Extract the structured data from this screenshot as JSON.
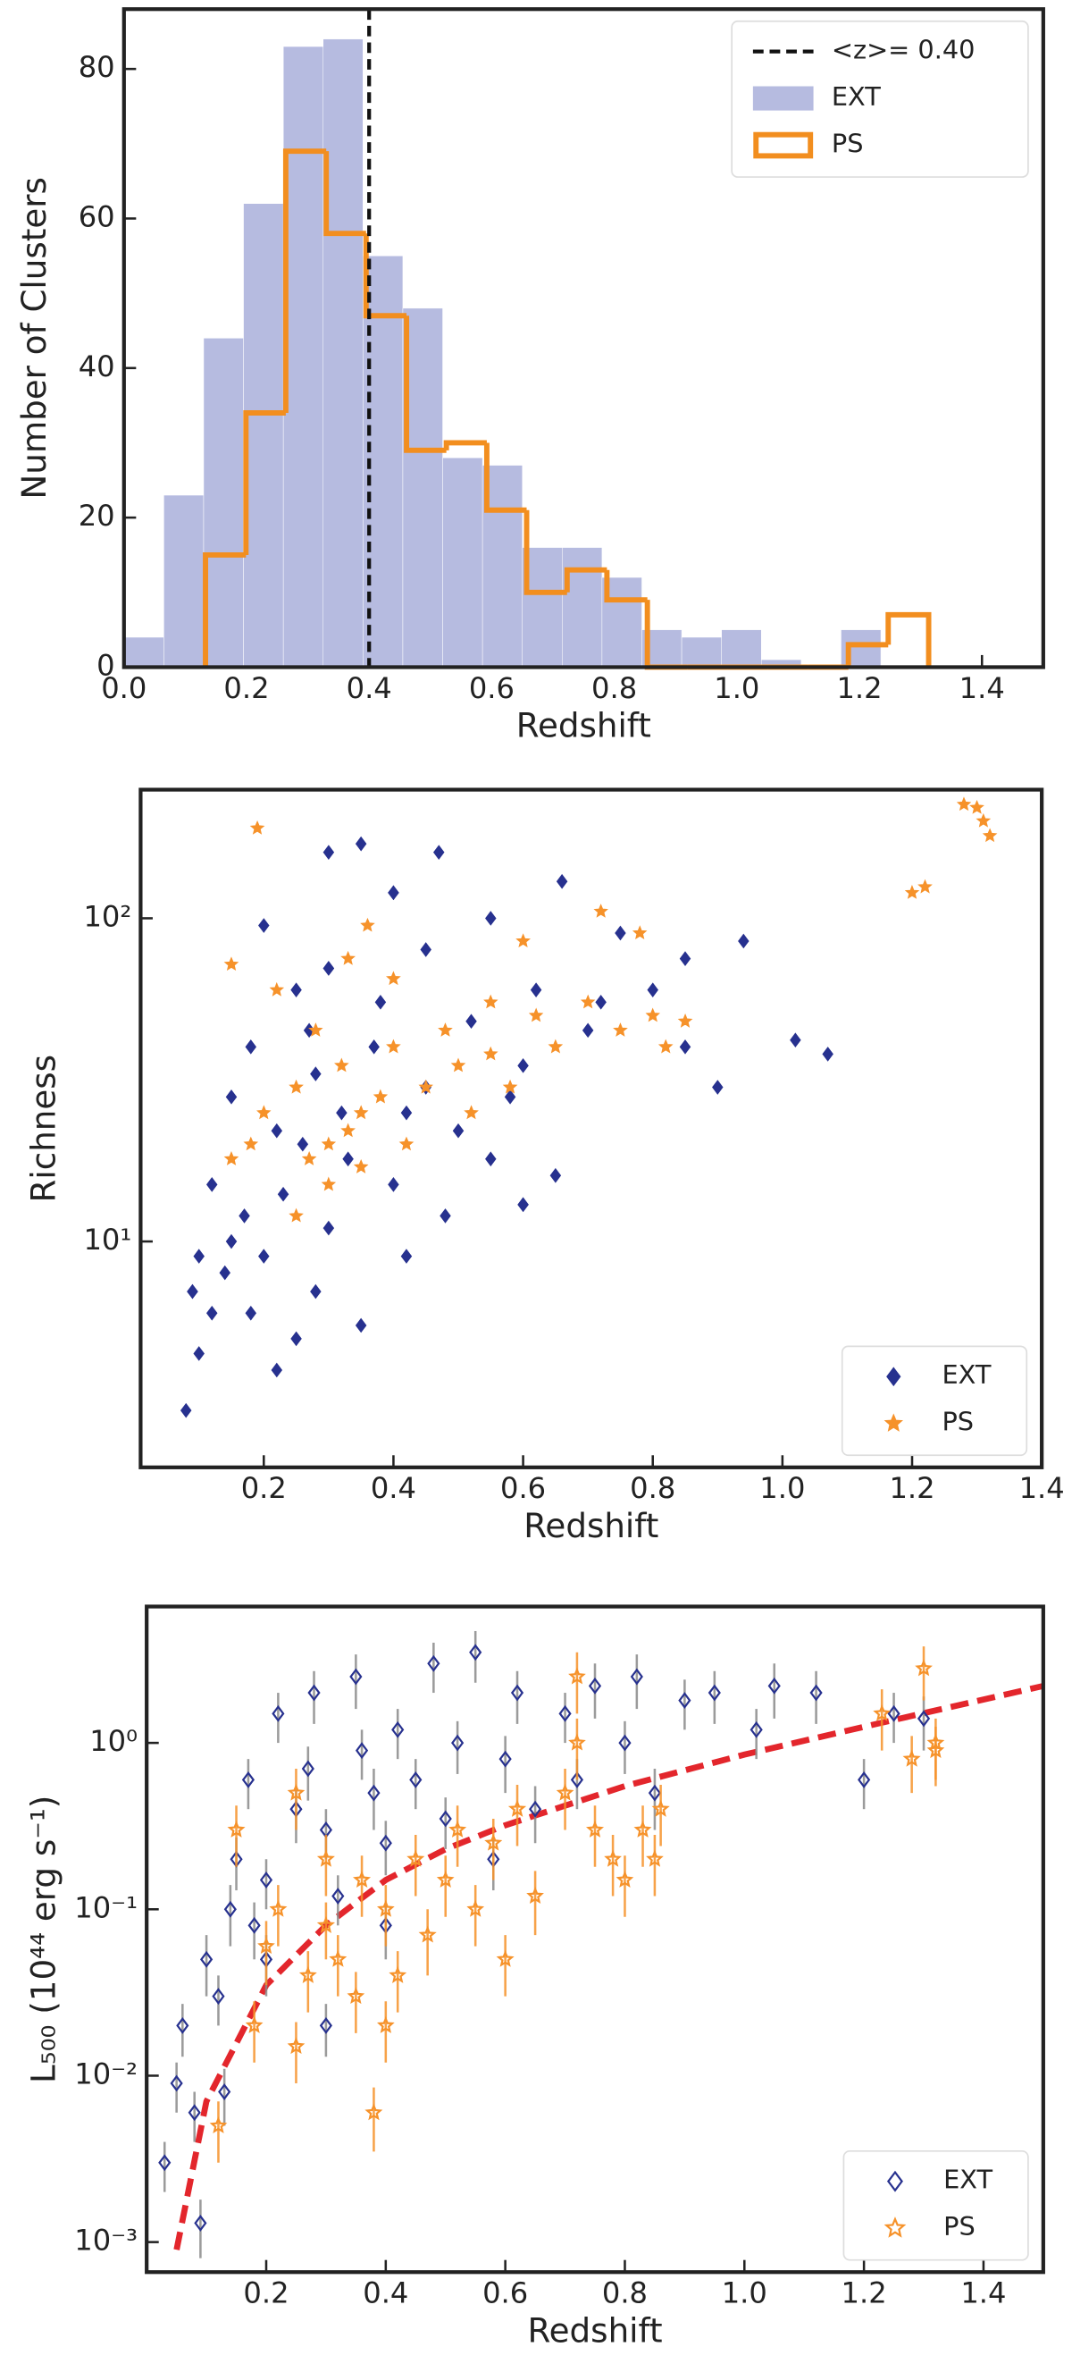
{
  "chart_data": [
    {
      "type": "histogram",
      "xlabel": "Redshift",
      "ylabel": "Number of Clusters",
      "xlim": [
        0,
        1.5
      ],
      "xticks": [
        {
          "value": 0,
          "label": "0.0"
        },
        0.2,
        0.4,
        0.6,
        0.8,
        {
          "value": 1,
          "label": "1.0"
        },
        1.2,
        1.4
      ],
      "ylim": [
        0,
        88
      ],
      "yticks": [
        0,
        20,
        40,
        60,
        80
      ],
      "legend": "upper right",
      "reference_line": {
        "name": "<z>= 0.40",
        "x": 0.4,
        "color": "#111111"
      },
      "series": [
        {
          "name": "EXT",
          "color": "#b6bbe0",
          "style": "filled",
          "bins": [
            0,
            0.065,
            0.13,
            0.195,
            0.26,
            0.325,
            0.39,
            0.455,
            0.52,
            0.585,
            0.65,
            0.715,
            0.78,
            0.845,
            0.91,
            0.975,
            1.04,
            1.105,
            1.17,
            1.235,
            1.3
          ],
          "counts": [
            4,
            23,
            44,
            62,
            83,
            84,
            55,
            48,
            28,
            27,
            16,
            16,
            12,
            5,
            4,
            5,
            1,
            0,
            5,
            0
          ]
        },
        {
          "name": "PS",
          "color": "#f28e1f",
          "style": "step",
          "bins": [
            0.133,
            0.199,
            0.264,
            0.33,
            0.395,
            0.461,
            0.526,
            0.592,
            0.657,
            0.723,
            0.788,
            0.854,
            0.919,
            0.985,
            1.05,
            1.116,
            1.182,
            1.247,
            1.313
          ],
          "counts": [
            15,
            34,
            69,
            58,
            47,
            29,
            30,
            21,
            10,
            13,
            9,
            0,
            0,
            0,
            0,
            0,
            3,
            7
          ]
        }
      ]
    },
    {
      "type": "scatter",
      "xlabel": "Redshift",
      "ylabel": "Richness",
      "log_y": true,
      "xlim": [
        0.01,
        1.4
      ],
      "xticks": [
        0.2,
        0.4,
        0.6,
        0.8,
        {
          "value": 1,
          "label": "1.0"
        },
        1.2,
        1.4
      ],
      "ylim": [
        2,
        250
      ],
      "yticks": [
        {
          "value": 10,
          "label": "10¹"
        },
        {
          "value": 100,
          "label": "10²"
        }
      ],
      "legend": "lower right",
      "series": [
        {
          "name": "EXT",
          "color": "#27318f",
          "marker": "diamond",
          "x": [
            0.08,
            0.1,
            0.12,
            0.14,
            0.15,
            0.17,
            0.18,
            0.2,
            0.22,
            0.23,
            0.25,
            0.26,
            0.28,
            0.3,
            0.32,
            0.35,
            0.37,
            0.4,
            0.42,
            0.45,
            0.48,
            0.5,
            0.55,
            0.6,
            0.62,
            0.66,
            0.7,
            0.75,
            0.8,
            0.85,
            0.9,
            0.94,
            1.02,
            1.07,
            0.35,
            0.3,
            0.2,
            0.25,
            0.18,
            0.45,
            0.38,
            0.28,
            0.33,
            0.42,
            0.15,
            0.12,
            0.1,
            0.22,
            0.52,
            0.58,
            0.65,
            0.72,
            0.85,
            0.47,
            0.55,
            0.27,
            0.4,
            0.3,
            0.6,
            0.09,
            0.4,
            0.3,
            0.6,
            0.09
          ],
          "values": [
            3,
            4.5,
            6,
            8,
            10,
            12,
            6,
            9,
            4,
            14,
            5,
            20,
            7,
            11,
            25,
            5.5,
            40,
            15,
            9,
            30,
            12,
            22,
            18,
            35,
            60,
            130,
            45,
            90,
            60,
            40,
            30,
            85,
            42,
            38,
            170,
            160,
            95,
            60,
            40,
            80,
            55,
            33,
            18,
            25,
            28,
            15,
            9,
            22,
            48,
            28,
            16,
            55,
            75,
            160,
            100,
            45,
            120,
            70,
            13,
            7,
            120,
            70,
            13,
            7
          ]
        },
        {
          "name": "PS",
          "color": "#f6922a",
          "marker": "star",
          "x": [
            0.15,
            0.15,
            0.2,
            0.22,
            0.25,
            0.27,
            0.3,
            0.3,
            0.32,
            0.33,
            0.35,
            0.36,
            0.38,
            0.4,
            0.42,
            0.45,
            0.48,
            0.5,
            0.52,
            0.55,
            0.58,
            0.6,
            0.62,
            0.65,
            0.7,
            0.72,
            0.75,
            0.8,
            0.82,
            0.85,
            0.78,
            1.2,
            1.22,
            1.28,
            1.3,
            1.31,
            1.32,
            0.19,
            0.28,
            0.35,
            0.4,
            0.55,
            0.18,
            0.25,
            0.33
          ],
          "values": [
            18,
            72,
            25,
            60,
            30,
            18,
            20,
            15,
            35,
            22,
            17,
            95,
            28,
            40,
            20,
            30,
            45,
            35,
            25,
            55,
            30,
            85,
            50,
            40,
            55,
            105,
            45,
            50,
            40,
            48,
            90,
            120,
            125,
            225,
            220,
            200,
            180,
            190,
            45,
            25,
            65,
            38,
            20,
            12,
            75
          ]
        }
      ]
    },
    {
      "type": "scatter",
      "xlabel": "Redshift",
      "ylabel": "L₅₀₀  (10⁴⁴ erg s⁻¹)",
      "log_y": true,
      "xlim": [
        0,
        1.5
      ],
      "xticks": [
        0.2,
        0.4,
        0.6,
        0.8,
        {
          "value": 1,
          "label": "1.0"
        },
        1.2,
        1.4
      ],
      "ylim": [
        0.00066,
        6.6
      ],
      "yticks": [
        {
          "value": 0.001,
          "label": "10⁻³"
        },
        {
          "value": 0.01,
          "label": "10⁻²"
        },
        {
          "value": 0.1,
          "label": "10⁻¹"
        },
        {
          "value": 1,
          "label": "10⁰"
        }
      ],
      "legend": "lower right",
      "curve": {
        "color": "#e3262c",
        "x": [
          0.05,
          0.1,
          0.2,
          0.3,
          0.4,
          0.5,
          0.6,
          0.8,
          1.0,
          1.2,
          1.5
        ],
        "values": [
          0.0009,
          0.007,
          0.035,
          0.08,
          0.15,
          0.23,
          0.32,
          0.55,
          0.85,
          1.25,
          2.2
        ]
      },
      "series": [
        {
          "name": "EXT",
          "color": "#27318f",
          "error_color": "#8a8a8a",
          "marker": "diamond-open",
          "x": [
            0.03,
            0.05,
            0.06,
            0.08,
            0.09,
            0.1,
            0.12,
            0.14,
            0.15,
            0.17,
            0.18,
            0.2,
            0.22,
            0.25,
            0.27,
            0.28,
            0.3,
            0.32,
            0.35,
            0.36,
            0.38,
            0.4,
            0.42,
            0.45,
            0.48,
            0.5,
            0.52,
            0.55,
            0.58,
            0.6,
            0.62,
            0.65,
            0.7,
            0.72,
            0.75,
            0.8,
            0.82,
            0.85,
            0.9,
            0.95,
            1.02,
            1.05,
            1.12,
            1.2,
            1.25,
            1.3,
            0.2,
            0.13,
            0.3,
            0.4
          ],
          "values": [
            0.003,
            0.009,
            0.02,
            0.006,
            0.0013,
            0.05,
            0.03,
            0.1,
            0.2,
            0.6,
            0.08,
            0.15,
            1.5,
            0.4,
            0.7,
            2,
            0.3,
            0.12,
            2.5,
            0.9,
            0.5,
            0.25,
            1.2,
            0.6,
            3,
            0.35,
            1,
            3.5,
            0.2,
            0.8,
            2,
            0.4,
            1.5,
            0.6,
            2.2,
            1,
            2.5,
            0.5,
            1.8,
            2,
            1.2,
            2.2,
            2,
            0.6,
            1.5,
            1.4,
            0.05,
            0.008,
            0.02,
            0.08
          ],
          "errors": [
            0.001,
            0.003,
            0.007,
            0.002,
            0.0005,
            0.02,
            0.01,
            0.04,
            0.07,
            0.2,
            0.03,
            0.05,
            0.5,
            0.15,
            0.25,
            0.7,
            0.1,
            0.04,
            0.9,
            0.3,
            0.2,
            0.09,
            0.4,
            0.2,
            1,
            0.12,
            0.35,
            1.2,
            0.07,
            0.3,
            0.7,
            0.15,
            0.5,
            0.2,
            0.8,
            0.35,
            0.9,
            0.2,
            0.6,
            0.7,
            0.4,
            0.8,
            0.7,
            0.2,
            0.5,
            0.5,
            0.02,
            0.003,
            0.007,
            0.03
          ]
        },
        {
          "name": "PS",
          "color": "#f6922a",
          "error_color": "#f6922a",
          "marker": "star-open",
          "x": [
            0.12,
            0.15,
            0.18,
            0.2,
            0.22,
            0.25,
            0.27,
            0.3,
            0.3,
            0.32,
            0.35,
            0.36,
            0.38,
            0.4,
            0.42,
            0.45,
            0.47,
            0.5,
            0.52,
            0.55,
            0.58,
            0.6,
            0.62,
            0.65,
            0.7,
            0.72,
            0.75,
            0.78,
            0.8,
            0.83,
            0.85,
            0.86,
            0.72,
            1.23,
            1.28,
            1.3,
            1.32,
            1.32,
            0.25,
            0.4
          ],
          "values": [
            0.005,
            0.3,
            0.02,
            0.06,
            0.1,
            0.015,
            0.04,
            0.08,
            0.2,
            0.05,
            0.03,
            0.15,
            0.006,
            0.1,
            0.04,
            0.2,
            0.07,
            0.15,
            0.3,
            0.1,
            0.25,
            0.05,
            0.4,
            0.12,
            0.5,
            1,
            0.3,
            0.2,
            0.15,
            0.3,
            0.2,
            0.4,
            2.5,
            1.5,
            0.8,
            2.8,
            1,
            0.9,
            0.5,
            0.02
          ],
          "errors": [
            0.002,
            0.12,
            0.008,
            0.025,
            0.04,
            0.006,
            0.016,
            0.03,
            0.08,
            0.02,
            0.012,
            0.06,
            0.0025,
            0.04,
            0.016,
            0.08,
            0.03,
            0.06,
            0.12,
            0.04,
            0.1,
            0.02,
            0.16,
            0.05,
            0.2,
            0.4,
            0.12,
            0.08,
            0.06,
            0.12,
            0.08,
            0.16,
            1,
            0.6,
            0.3,
            1,
            0.4,
            0.35,
            0.2,
            0.008
          ]
        }
      ]
    }
  ]
}
